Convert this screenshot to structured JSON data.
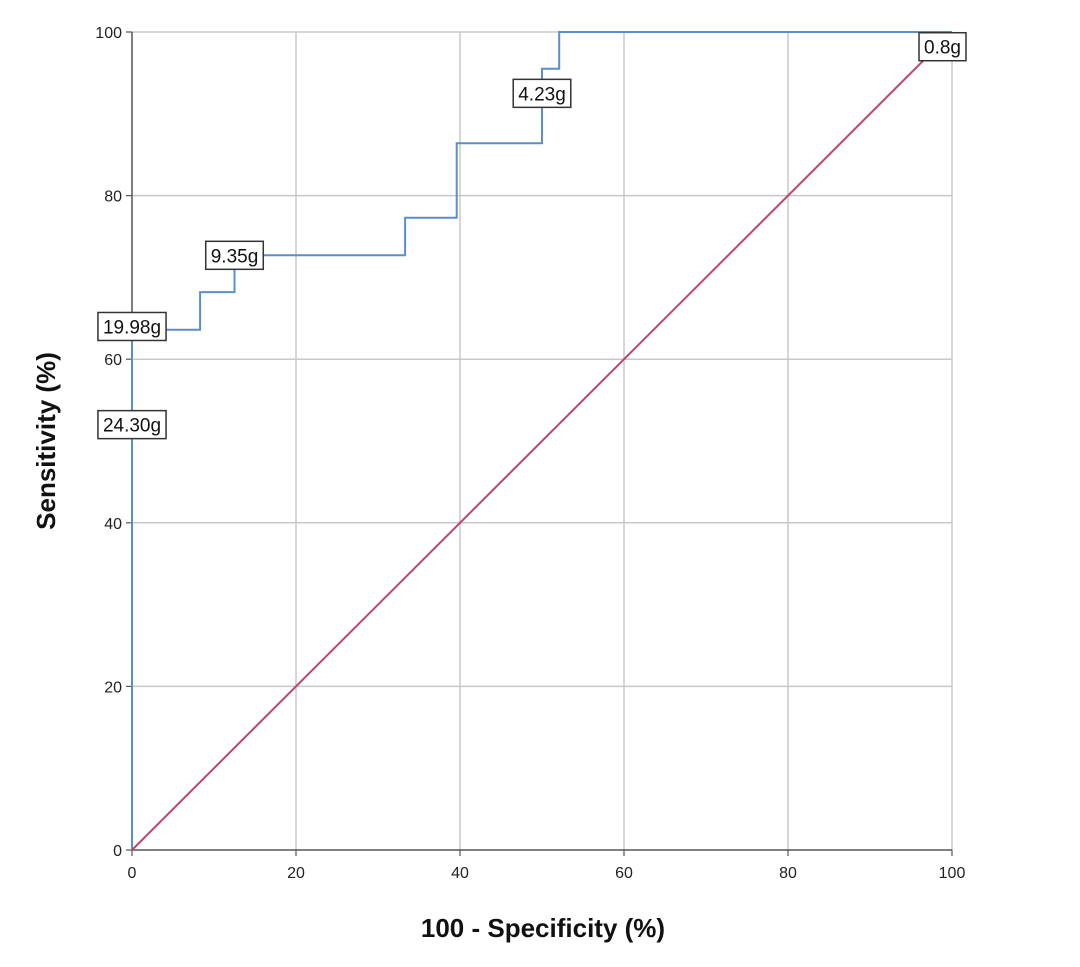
{
  "chart_data": {
    "type": "line",
    "title": "",
    "xlabel": "100 - Specificity (%)",
    "ylabel": "Sensitivity (%)",
    "xlim": [
      0,
      100
    ],
    "ylim": [
      0,
      100
    ],
    "x_ticks": [
      0,
      20,
      40,
      60,
      80,
      100
    ],
    "y_ticks": [
      0,
      20,
      40,
      60,
      80,
      100
    ],
    "grid": true,
    "series": [
      {
        "color": "#5b8fc9",
        "step": true,
        "x": [
          0,
          0,
          0,
          0,
          8.3,
          8.3,
          12.5,
          12.5,
          33.3,
          33.3,
          39.6,
          39.6,
          50,
          50,
          52.1,
          52.1,
          100
        ],
        "y": [
          0,
          50,
          63.6,
          63.6,
          63.6,
          68.2,
          68.2,
          72.7,
          72.7,
          77.3,
          77.3,
          86.4,
          86.4,
          95.5,
          95.5,
          100,
          100
        ]
      },
      {
        "color": "#c0456e",
        "x": [
          0,
          100
        ],
        "y": [
          0,
          100
        ]
      }
    ],
    "annotations": [
      {
        "text": "24.30g",
        "x": 0,
        "y": 52
      },
      {
        "text": "19.98g",
        "x": 0,
        "y": 64
      },
      {
        "text": "9.35g",
        "x": 12.5,
        "y": 72.7
      },
      {
        "text": "4.23g",
        "x": 50,
        "y": 92.5
      },
      {
        "text": "0.8g",
        "x": 100,
        "y": 98.2
      }
    ]
  }
}
